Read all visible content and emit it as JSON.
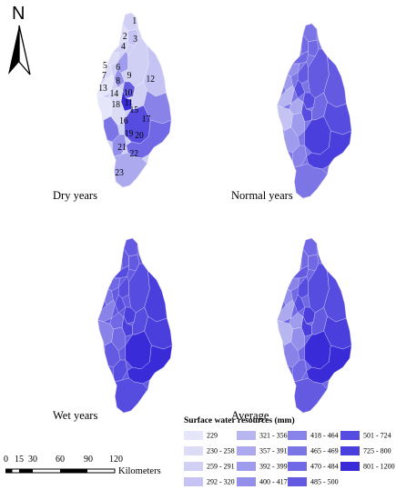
{
  "north_arrow": {
    "letter": "N"
  },
  "panels": [
    {
      "id": "dry",
      "label": "Dry years"
    },
    {
      "id": "normal",
      "label": "Normal years"
    },
    {
      "id": "wet",
      "label": "Wet years"
    },
    {
      "id": "average",
      "label": "Average"
    }
  ],
  "subbasin_numbers": [
    "1",
    "2",
    "3",
    "4",
    "5",
    "6",
    "7",
    "8",
    "9",
    "10",
    "11",
    "12",
    "13",
    "14",
    "15",
    "16",
    "17",
    "18",
    "19",
    "20",
    "21",
    "22",
    "23"
  ],
  "scale_bar": {
    "ticks": [
      "0",
      "15",
      "30",
      "60",
      "90",
      "120"
    ],
    "unit": "Kilometers"
  },
  "legend": {
    "title": "Surface water resources (mm)",
    "classes": [
      {
        "label": "229",
        "color": "#e6e6fa"
      },
      {
        "label": "230 - 258",
        "color": "#dcdcf7"
      },
      {
        "label": "259 - 291",
        "color": "#d0d0f5"
      },
      {
        "label": "292 - 320",
        "color": "#c4c3f3"
      },
      {
        "label": "321 - 356",
        "color": "#b8b6f1"
      },
      {
        "label": "357 - 391",
        "color": "#aca9ef"
      },
      {
        "label": "392 - 399",
        "color": "#a09ced"
      },
      {
        "label": "400 - 417",
        "color": "#948feb"
      },
      {
        "label": "418 - 464",
        "color": "#8882e9"
      },
      {
        "label": "465 - 469",
        "color": "#7c75e6"
      },
      {
        "label": "470 - 484",
        "color": "#7068e4"
      },
      {
        "label": "485 - 500",
        "color": "#645ae2"
      },
      {
        "label": "501 - 724",
        "color": "#574ce0"
      },
      {
        "label": "725 - 800",
        "color": "#4a3edd"
      },
      {
        "label": "801 - 1200",
        "color": "#3a2bd8"
      }
    ]
  }
}
